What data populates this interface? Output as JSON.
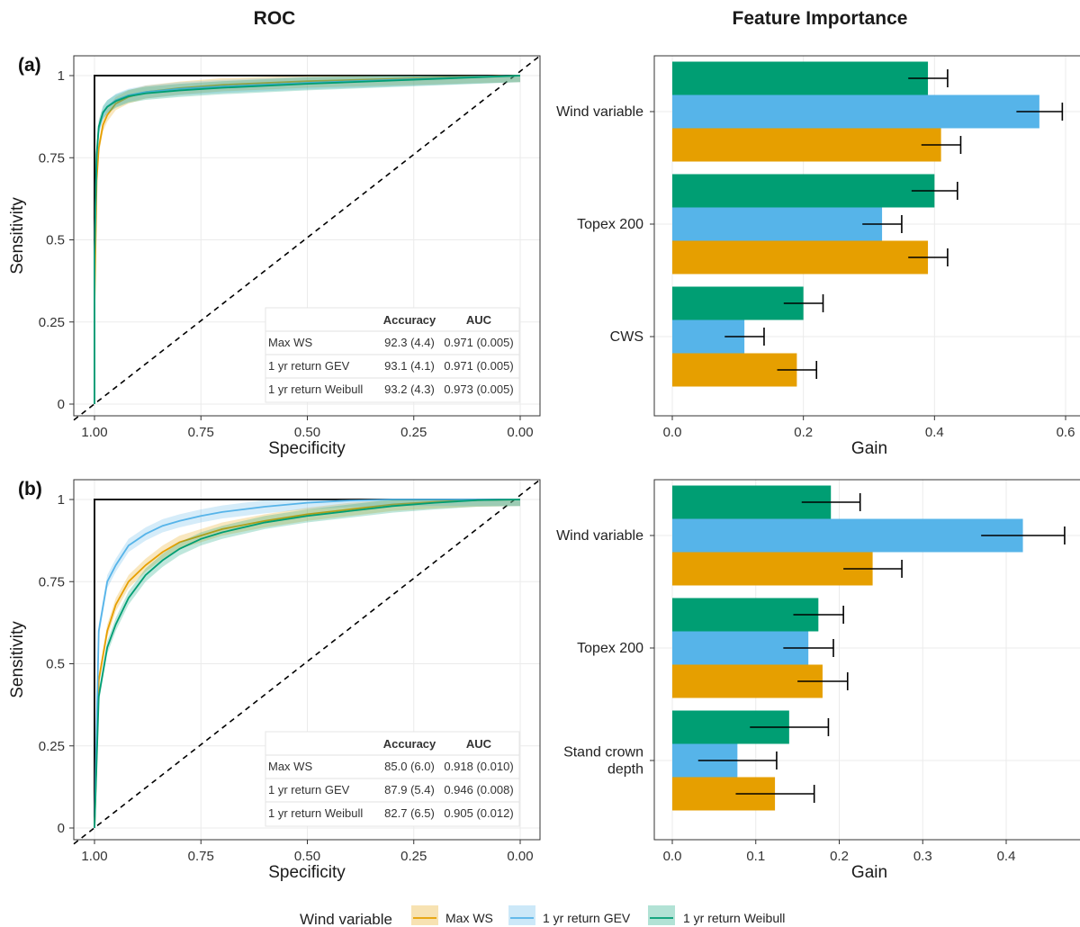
{
  "titles": {
    "roc": "ROC",
    "importance": "Feature Importance"
  },
  "colors": {
    "max_ws": "#E69F00",
    "gev": "#56B4E9",
    "weibull": "#009E73",
    "reference": "#000000"
  },
  "legend": {
    "title": "Wind variable",
    "items": [
      {
        "label": "Max WS",
        "color": "#E69F00"
      },
      {
        "label": "1 yr return GEV",
        "color": "#56B4E9"
      },
      {
        "label": "1 yr return Weibull",
        "color": "#009E73"
      }
    ]
  },
  "chart_data": [
    {
      "panel": "(a)",
      "type": "line",
      "title": "ROC",
      "xlabel": "Specificity",
      "ylabel": "Sensitivity",
      "xlim": [
        1.0,
        0.0
      ],
      "ylim": [
        0,
        1
      ],
      "x_reversed": true,
      "xticks": [
        "1.00",
        "0.75",
        "0.50",
        "0.25",
        "0.00"
      ],
      "yticks": [
        "0",
        "0.25",
        "0.5",
        "0.75",
        "1"
      ],
      "grid": true,
      "series": [
        {
          "name": "Max WS",
          "x": [
            1.0,
            1.0,
            0.995,
            0.99,
            0.98,
            0.97,
            0.95,
            0.92,
            0.88,
            0.8,
            0.7,
            0.5,
            0.3,
            0.1,
            0.0
          ],
          "y": [
            0.0,
            0.3,
            0.68,
            0.78,
            0.85,
            0.88,
            0.915,
            0.935,
            0.95,
            0.962,
            0.972,
            0.983,
            0.99,
            0.997,
            1.0
          ]
        },
        {
          "name": "1 yr return GEV",
          "x": [
            1.0,
            1.0,
            0.995,
            0.99,
            0.98,
            0.97,
            0.95,
            0.92,
            0.88,
            0.8,
            0.7,
            0.5,
            0.3,
            0.1,
            0.0
          ],
          "y": [
            0.0,
            0.45,
            0.75,
            0.84,
            0.885,
            0.905,
            0.925,
            0.94,
            0.95,
            0.96,
            0.967,
            0.978,
            0.987,
            0.996,
            1.0
          ]
        },
        {
          "name": "1 yr return Weibull",
          "x": [
            1.0,
            1.0,
            0.995,
            0.99,
            0.98,
            0.97,
            0.95,
            0.92,
            0.88,
            0.8,
            0.7,
            0.5,
            0.3,
            0.1,
            0.0
          ],
          "y": [
            0.0,
            0.45,
            0.76,
            0.845,
            0.888,
            0.905,
            0.922,
            0.937,
            0.946,
            0.955,
            0.963,
            0.975,
            0.985,
            0.995,
            1.0
          ]
        }
      ],
      "table": {
        "headers": [
          "",
          "Accuracy",
          "AUC"
        ],
        "rows": [
          [
            "Max WS",
            "92.3 (4.4)",
            "0.971 (0.005)"
          ],
          [
            "1 yr return GEV",
            "93.1 (4.1)",
            "0.971 (0.005)"
          ],
          [
            "1 yr return Weibull",
            "93.2 (4.3)",
            "0.973 (0.005)"
          ]
        ]
      }
    },
    {
      "panel": "(a)",
      "type": "bar",
      "orientation": "horizontal",
      "title": "Feature Importance",
      "xlabel": "Gain",
      "xlim": [
        0,
        0.6
      ],
      "xticks": [
        "0.0",
        "0.2",
        "0.4",
        "0.6"
      ],
      "categories": [
        "Wind variable",
        "Topex 200",
        "CWS"
      ],
      "series": [
        {
          "name": "1 yr return Weibull",
          "values": [
            0.39,
            0.4,
            0.2
          ],
          "error": [
            0.03,
            0.035,
            0.03
          ]
        },
        {
          "name": "1 yr return GEV",
          "values": [
            0.56,
            0.32,
            0.11
          ],
          "error": [
            0.035,
            0.03,
            0.03
          ]
        },
        {
          "name": "Max WS",
          "values": [
            0.41,
            0.39,
            0.19
          ],
          "error": [
            0.03,
            0.03,
            0.03
          ]
        }
      ]
    },
    {
      "panel": "(b)",
      "type": "line",
      "xlabel": "Specificity",
      "ylabel": "Sensitivity",
      "xlim": [
        1.0,
        0.0
      ],
      "ylim": [
        0,
        1
      ],
      "x_reversed": true,
      "xticks": [
        "1.00",
        "0.75",
        "0.50",
        "0.25",
        "0.00"
      ],
      "yticks": [
        "0",
        "0.25",
        "0.5",
        "0.75",
        "1"
      ],
      "grid": true,
      "series": [
        {
          "name": "Max WS",
          "x": [
            1.0,
            0.99,
            0.97,
            0.95,
            0.92,
            0.88,
            0.84,
            0.8,
            0.75,
            0.7,
            0.6,
            0.5,
            0.4,
            0.3,
            0.2,
            0.1,
            0.0
          ],
          "y": [
            0.0,
            0.45,
            0.6,
            0.68,
            0.75,
            0.8,
            0.84,
            0.87,
            0.89,
            0.91,
            0.935,
            0.955,
            0.97,
            0.985,
            0.993,
            0.998,
            1.0
          ]
        },
        {
          "name": "1 yr return GEV",
          "x": [
            1.0,
            0.99,
            0.97,
            0.95,
            0.92,
            0.88,
            0.84,
            0.8,
            0.75,
            0.7,
            0.6,
            0.5,
            0.4,
            0.3,
            0.2,
            0.1,
            0.0
          ],
          "y": [
            0.0,
            0.6,
            0.75,
            0.8,
            0.86,
            0.895,
            0.92,
            0.935,
            0.95,
            0.962,
            0.978,
            0.99,
            0.997,
            1.0,
            1.0,
            1.0,
            1.0
          ]
        },
        {
          "name": "1 yr return Weibull",
          "x": [
            1.0,
            0.99,
            0.97,
            0.95,
            0.92,
            0.88,
            0.84,
            0.8,
            0.75,
            0.7,
            0.6,
            0.5,
            0.4,
            0.3,
            0.2,
            0.1,
            0.0
          ],
          "y": [
            0.0,
            0.4,
            0.55,
            0.62,
            0.7,
            0.77,
            0.815,
            0.85,
            0.88,
            0.9,
            0.93,
            0.95,
            0.965,
            0.98,
            0.99,
            0.998,
            1.0
          ]
        }
      ],
      "table": {
        "headers": [
          "",
          "Accuracy",
          "AUC"
        ],
        "rows": [
          [
            "Max WS",
            "85.0 (6.0)",
            "0.918 (0.010)"
          ],
          [
            "1 yr return GEV",
            "87.9 (5.4)",
            "0.946 (0.008)"
          ],
          [
            "1 yr return Weibull",
            "82.7 (6.5)",
            "0.905 (0.012)"
          ]
        ]
      }
    },
    {
      "panel": "(b)",
      "type": "bar",
      "orientation": "horizontal",
      "xlabel": "Gain",
      "xlim": [
        -0.005,
        0.475
      ],
      "xticks": [
        "0.0",
        "0.1",
        "0.2",
        "0.3",
        "0.4"
      ],
      "categories": [
        "Wind variable",
        "Topex 200",
        "Stand crown\ndepth"
      ],
      "series": [
        {
          "name": "1 yr return Weibull",
          "values": [
            0.19,
            0.175,
            0.14
          ],
          "error": [
            0.035,
            0.03,
            0.047
          ]
        },
        {
          "name": "1 yr return GEV",
          "values": [
            0.42,
            0.163,
            0.078
          ],
          "error": [
            0.05,
            0.03,
            0.047
          ]
        },
        {
          "name": "Max WS",
          "values": [
            0.24,
            0.18,
            0.123
          ],
          "error": [
            0.035,
            0.03,
            0.047
          ]
        }
      ]
    }
  ]
}
